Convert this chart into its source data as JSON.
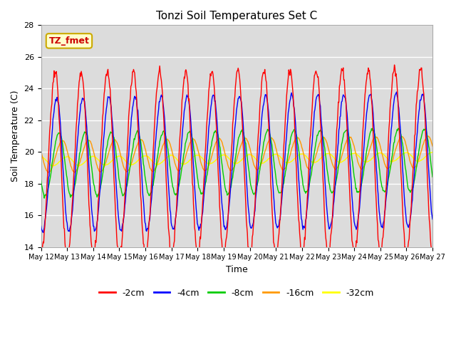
{
  "title": "Tonzi Soil Temperatures Set C",
  "xlabel": "Time",
  "ylabel": "Soil Temperature (C)",
  "ylim": [
    14,
    28
  ],
  "yticks": [
    14,
    16,
    18,
    20,
    22,
    24,
    26,
    28
  ],
  "x_tick_days": [
    12,
    13,
    14,
    15,
    16,
    17,
    18,
    19,
    20,
    21,
    22,
    23,
    24,
    25,
    26,
    27
  ],
  "colors": {
    "-2cm": "#ff0000",
    "-4cm": "#0000ff",
    "-8cm": "#00cc00",
    "-16cm": "#ff9900",
    "-32cm": "#ffff00"
  },
  "legend_labels": [
    "-2cm",
    "-4cm",
    "-8cm",
    "-16cm",
    "-32cm"
  ],
  "annotation_text": "TZ_fmet",
  "annotation_bg": "#ffffcc",
  "annotation_border": "#ccaa00",
  "plot_bg": "#dcdcdc"
}
